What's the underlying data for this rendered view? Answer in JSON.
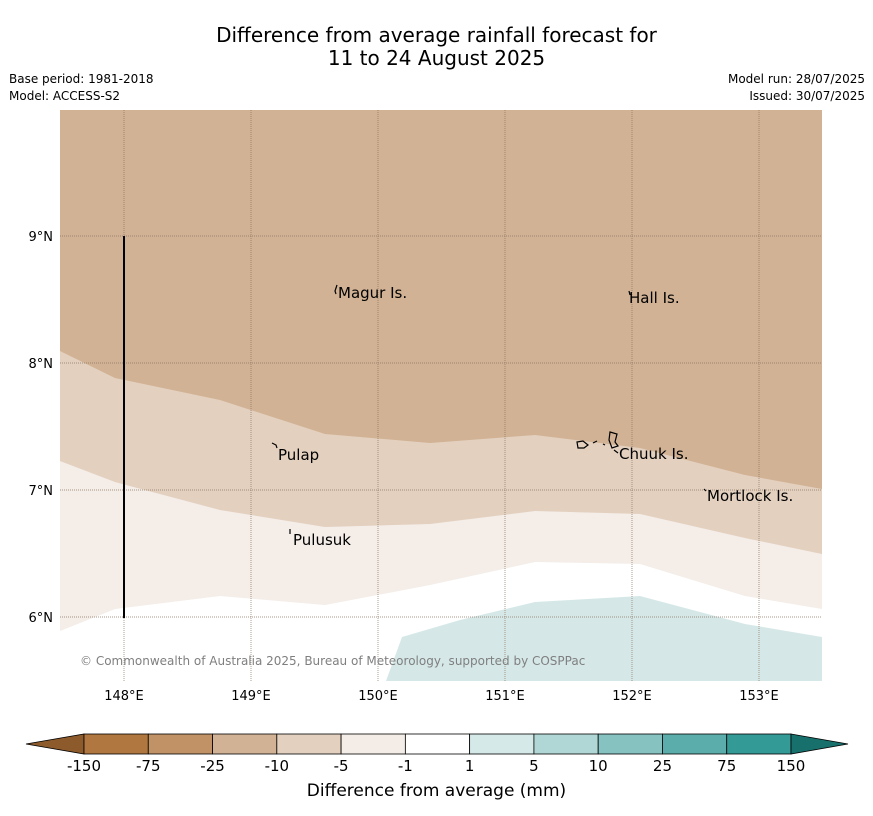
{
  "title": {
    "line1": "Difference from average rainfall forecast for",
    "line2": "11 to 24 August 2025"
  },
  "meta": {
    "base_period": "Base period: 1981-2018",
    "model": "Model: ACCESS-S2",
    "model_run": "Model run: 28/07/2025",
    "issued": "Issued: 30/07/2025"
  },
  "map": {
    "lon_ticks": [
      "148°E",
      "149°E",
      "150°E",
      "151°E",
      "152°E",
      "153°E"
    ],
    "lat_ticks": [
      "9°N",
      "8°N",
      "7°N",
      "6°N"
    ],
    "places": [
      {
        "name": "Magur Is.",
        "lon": 149.7,
        "lat": 8.55
      },
      {
        "name": "Hall Is.",
        "lon": 151.98,
        "lat": 8.5
      },
      {
        "name": "Pulap",
        "lon": 149.2,
        "lat": 7.3
      },
      {
        "name": "Chuuk Is.",
        "lon": 151.85,
        "lat": 7.35
      },
      {
        "name": "Mortlock Is.",
        "lon": 152.6,
        "lat": 6.97
      },
      {
        "name": "Pulusuk",
        "lon": 149.3,
        "lat": 6.65
      }
    ],
    "copyright": "© Commonwealth of Australia 2025, Bureau of Meteorology, supported by COSPPac"
  },
  "colorbar": {
    "labels": [
      "-150",
      "-75",
      "-25",
      "-10",
      "-5",
      "-1",
      "1",
      "5",
      "10",
      "25",
      "75",
      "150"
    ],
    "colors": [
      "#8c5a2b",
      "#b07840",
      "#c09266",
      "#d2b294",
      "#e3d0be",
      "#f4ece6",
      "#ffffff",
      "#d5eae8",
      "#b0d7d5",
      "#86c2c0",
      "#5aadab",
      "#349a96",
      "#17706c"
    ],
    "label": "Difference from average (mm)"
  }
}
